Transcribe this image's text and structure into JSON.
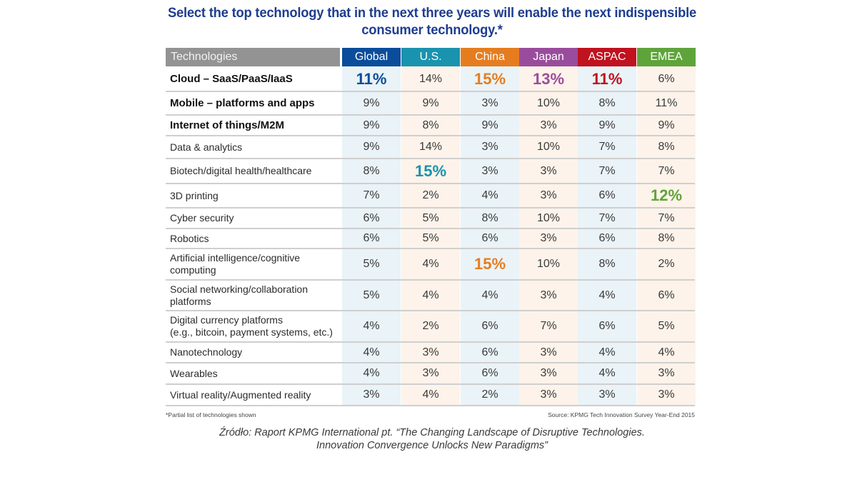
{
  "title": "Select the top technology that in the next three years will enable the next indispensible consumer technology.*",
  "footnote": "*Partial list of technologies shown",
  "source": "Source: KPMG Tech Innovation Survey Year-End 2015",
  "citation_line1": "Źródło: Raport KPMG International pt. “The Changing Landscape of Disruptive Technologies.",
  "citation_line2": "Innovation Convergence Unlocks New Paradigms”",
  "colors": {
    "Global": "#0b4d9a",
    "U.S.": "#1a93ae",
    "China": "#e57d20",
    "Japan": "#9a4c9c",
    "ASPAC": "#c0121f",
    "EMEA": "#5ea43a",
    "header_gray": "#939393",
    "bg_blue": "#eaf3f7",
    "bg_peach": "#fdf3ea"
  },
  "chart_data": {
    "type": "table",
    "title": "Select the top technology that in the next three years will enable the next indispensible consumer technology.*",
    "row_header": "Technologies",
    "columns": [
      "Global",
      "U.S.",
      "China",
      "Japan",
      "ASPAC",
      "EMEA"
    ],
    "unit": "%",
    "rows": [
      {
        "label": "Cloud – SaaS/PaaS/IaaS",
        "bold": true,
        "values": [
          11,
          14,
          15,
          13,
          11,
          6
        ],
        "highlight": [
          0,
          2,
          3,
          4
        ]
      },
      {
        "label": "Mobile – platforms and apps",
        "bold": true,
        "values": [
          9,
          9,
          3,
          10,
          8,
          11
        ],
        "highlight": []
      },
      {
        "label": "Internet of things/M2M",
        "bold": true,
        "values": [
          9,
          8,
          9,
          3,
          9,
          9
        ],
        "highlight": []
      },
      {
        "label": "Data & analytics",
        "bold": false,
        "values": [
          9,
          14,
          3,
          10,
          7,
          8
        ],
        "highlight": []
      },
      {
        "label": "Biotech/digital health/healthcare",
        "bold": false,
        "values": [
          8,
          15,
          3,
          3,
          7,
          7
        ],
        "highlight": [
          1
        ]
      },
      {
        "label": "3D printing",
        "bold": false,
        "values": [
          7,
          2,
          4,
          3,
          6,
          12
        ],
        "highlight": [
          5
        ]
      },
      {
        "label": "Cyber security",
        "bold": false,
        "values": [
          6,
          5,
          8,
          10,
          7,
          7
        ],
        "highlight": []
      },
      {
        "label": "Robotics",
        "bold": false,
        "values": [
          6,
          5,
          6,
          3,
          6,
          8
        ],
        "highlight": []
      },
      {
        "label": "Artificial intelligence/cognitive computing",
        "bold": false,
        "values": [
          5,
          4,
          15,
          10,
          8,
          2
        ],
        "highlight": [
          2
        ]
      },
      {
        "label": "Social networking/collaboration platforms",
        "bold": false,
        "values": [
          5,
          4,
          4,
          3,
          4,
          6
        ],
        "highlight": []
      },
      {
        "label": "Digital currency platforms (e.g., bitcoin, payment systems, etc.)",
        "bold": false,
        "values": [
          4,
          2,
          6,
          7,
          6,
          5
        ],
        "highlight": []
      },
      {
        "label": "Nanotechnology",
        "bold": false,
        "values": [
          4,
          3,
          6,
          3,
          4,
          4
        ],
        "highlight": []
      },
      {
        "label": "Wearables",
        "bold": false,
        "values": [
          4,
          3,
          6,
          3,
          4,
          3
        ],
        "highlight": []
      },
      {
        "label": "Virtual reality/Augmented reality",
        "bold": false,
        "values": [
          3,
          4,
          2,
          3,
          3,
          3
        ],
        "highlight": []
      }
    ],
    "row_label_display": [
      [
        "Cloud – SaaS/PaaS/IaaS"
      ],
      [
        "Mobile – platforms and apps"
      ],
      [
        "Internet of things/M2M"
      ],
      [
        "Data & analytics"
      ],
      [
        "Biotech/digital health/healthcare"
      ],
      [
        "3D printing"
      ],
      [
        "Cyber security"
      ],
      [
        "Robotics"
      ],
      [
        "Artificial intelligence/cognitive",
        "computing"
      ],
      [
        "Social networking/collaboration",
        "platforms"
      ],
      [
        "Digital currency platforms",
        "(e.g., bitcoin, payment systems, etc.)"
      ],
      [
        "Nanotechnology"
      ],
      [
        "Wearables"
      ],
      [
        "Virtual reality/Augmented reality"
      ]
    ]
  }
}
